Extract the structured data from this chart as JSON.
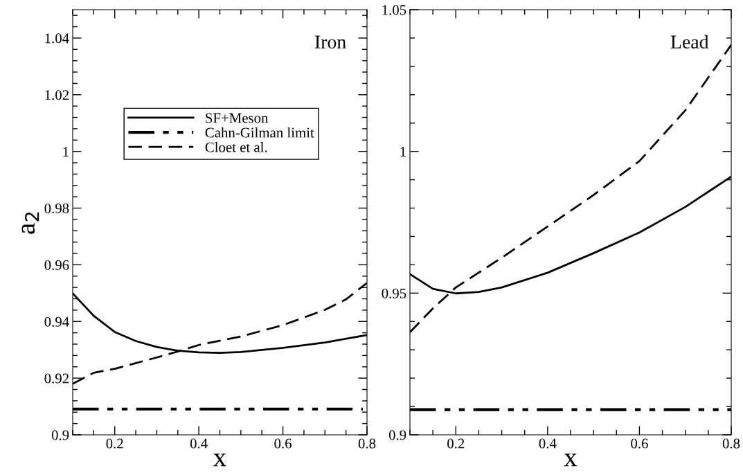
{
  "chart_data": [
    {
      "type": "line",
      "title": "Iron",
      "xlabel": "x",
      "ylabel": "a$_{2}$",
      "xlim": [
        0.1,
        0.8
      ],
      "ylim": [
        0.9,
        1.05
      ],
      "xticks": [
        0.2,
        0.4,
        0.6,
        0.8
      ],
      "yticks": [
        0.9,
        0.92,
        0.94,
        0.96,
        0.98,
        1,
        1.02,
        1.04
      ],
      "grid": false,
      "legend": "top",
      "series": [
        {
          "name": "SF+Meson",
          "color": "#000000",
          "line_style": "solid",
          "x": [
            0.1,
            0.15,
            0.2,
            0.25,
            0.3,
            0.35,
            0.4,
            0.45,
            0.5,
            0.6,
            0.7,
            0.8
          ],
          "values": [
            0.9499,
            0.942,
            0.9363,
            0.9331,
            0.931,
            0.9297,
            0.9291,
            0.9289,
            0.9292,
            0.9307,
            0.9326,
            0.9352
          ]
        },
        {
          "name": "Cahn-Gilman limit",
          "color": "#000000",
          "line_style": "dashdotdot",
          "x": [
            0.1,
            0.79
          ],
          "values": [
            0.9091,
            0.9091
          ]
        },
        {
          "name": "Cloet et al.",
          "color": "#000000",
          "line_style": "dashed",
          "x": [
            0.1,
            0.15,
            0.2,
            0.3,
            0.35,
            0.4,
            0.5,
            0.6,
            0.7,
            0.75,
            0.8
          ],
          "values": [
            0.918,
            0.9219,
            0.9233,
            0.9273,
            0.9294,
            0.9317,
            0.9347,
            0.9387,
            0.9441,
            0.9478,
            0.9536
          ]
        }
      ]
    },
    {
      "type": "line",
      "title": "Lead",
      "xlabel": "x",
      "xlim": [
        0.1,
        0.8
      ],
      "ylim": [
        0.9,
        1.05
      ],
      "xticks": [
        0.2,
        0.4,
        0.6,
        0.8
      ],
      "yticks": [
        0.9,
        0.95,
        1,
        1.05
      ],
      "grid": false,
      "series": [
        {
          "color": "#000000",
          "line_style": "solid",
          "x": [
            0.1,
            0.15,
            0.2,
            0.25,
            0.3,
            0.4,
            0.5,
            0.6,
            0.7,
            0.8
          ],
          "values": [
            0.9567,
            0.9515,
            0.9499,
            0.9504,
            0.952,
            0.9572,
            0.9641,
            0.9714,
            0.9804,
            0.9911
          ]
        },
        {
          "color": "#000000",
          "line_style": "dashdotdot",
          "x": [
            0.1,
            0.8
          ],
          "values": [
            0.9089,
            0.9089
          ]
        },
        {
          "color": "#000000",
          "line_style": "dashed",
          "x": [
            0.1,
            0.15,
            0.2,
            0.3,
            0.4,
            0.5,
            0.6,
            0.7,
            0.8
          ],
          "values": [
            0.9362,
            0.9446,
            0.952,
            0.9625,
            0.9735,
            0.9846,
            0.9966,
            1.0145,
            1.0376
          ]
        }
      ]
    }
  ]
}
